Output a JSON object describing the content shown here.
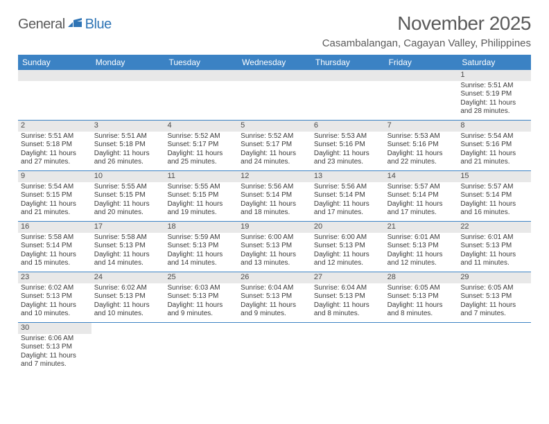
{
  "logo": {
    "general": "General",
    "blue": "Blue"
  },
  "title": "November 2025",
  "location": "Casambalangan, Cagayan Valley, Philippines",
  "colors": {
    "header_bg": "#3b82c4",
    "header_text": "#ffffff",
    "daynum_bg": "#e8e8e8",
    "week_border": "#3b82c4",
    "body_text": "#3a3a3a",
    "title_text": "#5a5a5a",
    "logo_gray": "#5a5a5a",
    "logo_blue": "#2e74b5",
    "background": "#ffffff"
  },
  "day_headers": [
    "Sunday",
    "Monday",
    "Tuesday",
    "Wednesday",
    "Thursday",
    "Friday",
    "Saturday"
  ],
  "weeks": [
    [
      null,
      null,
      null,
      null,
      null,
      null,
      {
        "n": "1",
        "sr": "5:51 AM",
        "ss": "5:19 PM",
        "dl1": "11 hours",
        "dl2": "and 28 minutes."
      }
    ],
    [
      {
        "n": "2",
        "sr": "5:51 AM",
        "ss": "5:18 PM",
        "dl1": "11 hours",
        "dl2": "and 27 minutes."
      },
      {
        "n": "3",
        "sr": "5:51 AM",
        "ss": "5:18 PM",
        "dl1": "11 hours",
        "dl2": "and 26 minutes."
      },
      {
        "n": "4",
        "sr": "5:52 AM",
        "ss": "5:17 PM",
        "dl1": "11 hours",
        "dl2": "and 25 minutes."
      },
      {
        "n": "5",
        "sr": "5:52 AM",
        "ss": "5:17 PM",
        "dl1": "11 hours",
        "dl2": "and 24 minutes."
      },
      {
        "n": "6",
        "sr": "5:53 AM",
        "ss": "5:16 PM",
        "dl1": "11 hours",
        "dl2": "and 23 minutes."
      },
      {
        "n": "7",
        "sr": "5:53 AM",
        "ss": "5:16 PM",
        "dl1": "11 hours",
        "dl2": "and 22 minutes."
      },
      {
        "n": "8",
        "sr": "5:54 AM",
        "ss": "5:16 PM",
        "dl1": "11 hours",
        "dl2": "and 21 minutes."
      }
    ],
    [
      {
        "n": "9",
        "sr": "5:54 AM",
        "ss": "5:15 PM",
        "dl1": "11 hours",
        "dl2": "and 21 minutes."
      },
      {
        "n": "10",
        "sr": "5:55 AM",
        "ss": "5:15 PM",
        "dl1": "11 hours",
        "dl2": "and 20 minutes."
      },
      {
        "n": "11",
        "sr": "5:55 AM",
        "ss": "5:15 PM",
        "dl1": "11 hours",
        "dl2": "and 19 minutes."
      },
      {
        "n": "12",
        "sr": "5:56 AM",
        "ss": "5:14 PM",
        "dl1": "11 hours",
        "dl2": "and 18 minutes."
      },
      {
        "n": "13",
        "sr": "5:56 AM",
        "ss": "5:14 PM",
        "dl1": "11 hours",
        "dl2": "and 17 minutes."
      },
      {
        "n": "14",
        "sr": "5:57 AM",
        "ss": "5:14 PM",
        "dl1": "11 hours",
        "dl2": "and 17 minutes."
      },
      {
        "n": "15",
        "sr": "5:57 AM",
        "ss": "5:14 PM",
        "dl1": "11 hours",
        "dl2": "and 16 minutes."
      }
    ],
    [
      {
        "n": "16",
        "sr": "5:58 AM",
        "ss": "5:14 PM",
        "dl1": "11 hours",
        "dl2": "and 15 minutes."
      },
      {
        "n": "17",
        "sr": "5:58 AM",
        "ss": "5:13 PM",
        "dl1": "11 hours",
        "dl2": "and 14 minutes."
      },
      {
        "n": "18",
        "sr": "5:59 AM",
        "ss": "5:13 PM",
        "dl1": "11 hours",
        "dl2": "and 14 minutes."
      },
      {
        "n": "19",
        "sr": "6:00 AM",
        "ss": "5:13 PM",
        "dl1": "11 hours",
        "dl2": "and 13 minutes."
      },
      {
        "n": "20",
        "sr": "6:00 AM",
        "ss": "5:13 PM",
        "dl1": "11 hours",
        "dl2": "and 12 minutes."
      },
      {
        "n": "21",
        "sr": "6:01 AM",
        "ss": "5:13 PM",
        "dl1": "11 hours",
        "dl2": "and 12 minutes."
      },
      {
        "n": "22",
        "sr": "6:01 AM",
        "ss": "5:13 PM",
        "dl1": "11 hours",
        "dl2": "and 11 minutes."
      }
    ],
    [
      {
        "n": "23",
        "sr": "6:02 AM",
        "ss": "5:13 PM",
        "dl1": "11 hours",
        "dl2": "and 10 minutes."
      },
      {
        "n": "24",
        "sr": "6:02 AM",
        "ss": "5:13 PM",
        "dl1": "11 hours",
        "dl2": "and 10 minutes."
      },
      {
        "n": "25",
        "sr": "6:03 AM",
        "ss": "5:13 PM",
        "dl1": "11 hours",
        "dl2": "and 9 minutes."
      },
      {
        "n": "26",
        "sr": "6:04 AM",
        "ss": "5:13 PM",
        "dl1": "11 hours",
        "dl2": "and 9 minutes."
      },
      {
        "n": "27",
        "sr": "6:04 AM",
        "ss": "5:13 PM",
        "dl1": "11 hours",
        "dl2": "and 8 minutes."
      },
      {
        "n": "28",
        "sr": "6:05 AM",
        "ss": "5:13 PM",
        "dl1": "11 hours",
        "dl2": "and 8 minutes."
      },
      {
        "n": "29",
        "sr": "6:05 AM",
        "ss": "5:13 PM",
        "dl1": "11 hours",
        "dl2": "and 7 minutes."
      }
    ],
    [
      {
        "n": "30",
        "sr": "6:06 AM",
        "ss": "5:13 PM",
        "dl1": "11 hours",
        "dl2": "and 7 minutes."
      },
      null,
      null,
      null,
      null,
      null,
      null
    ]
  ],
  "labels": {
    "sunrise": "Sunrise: ",
    "sunset": "Sunset: ",
    "daylight": "Daylight: "
  }
}
